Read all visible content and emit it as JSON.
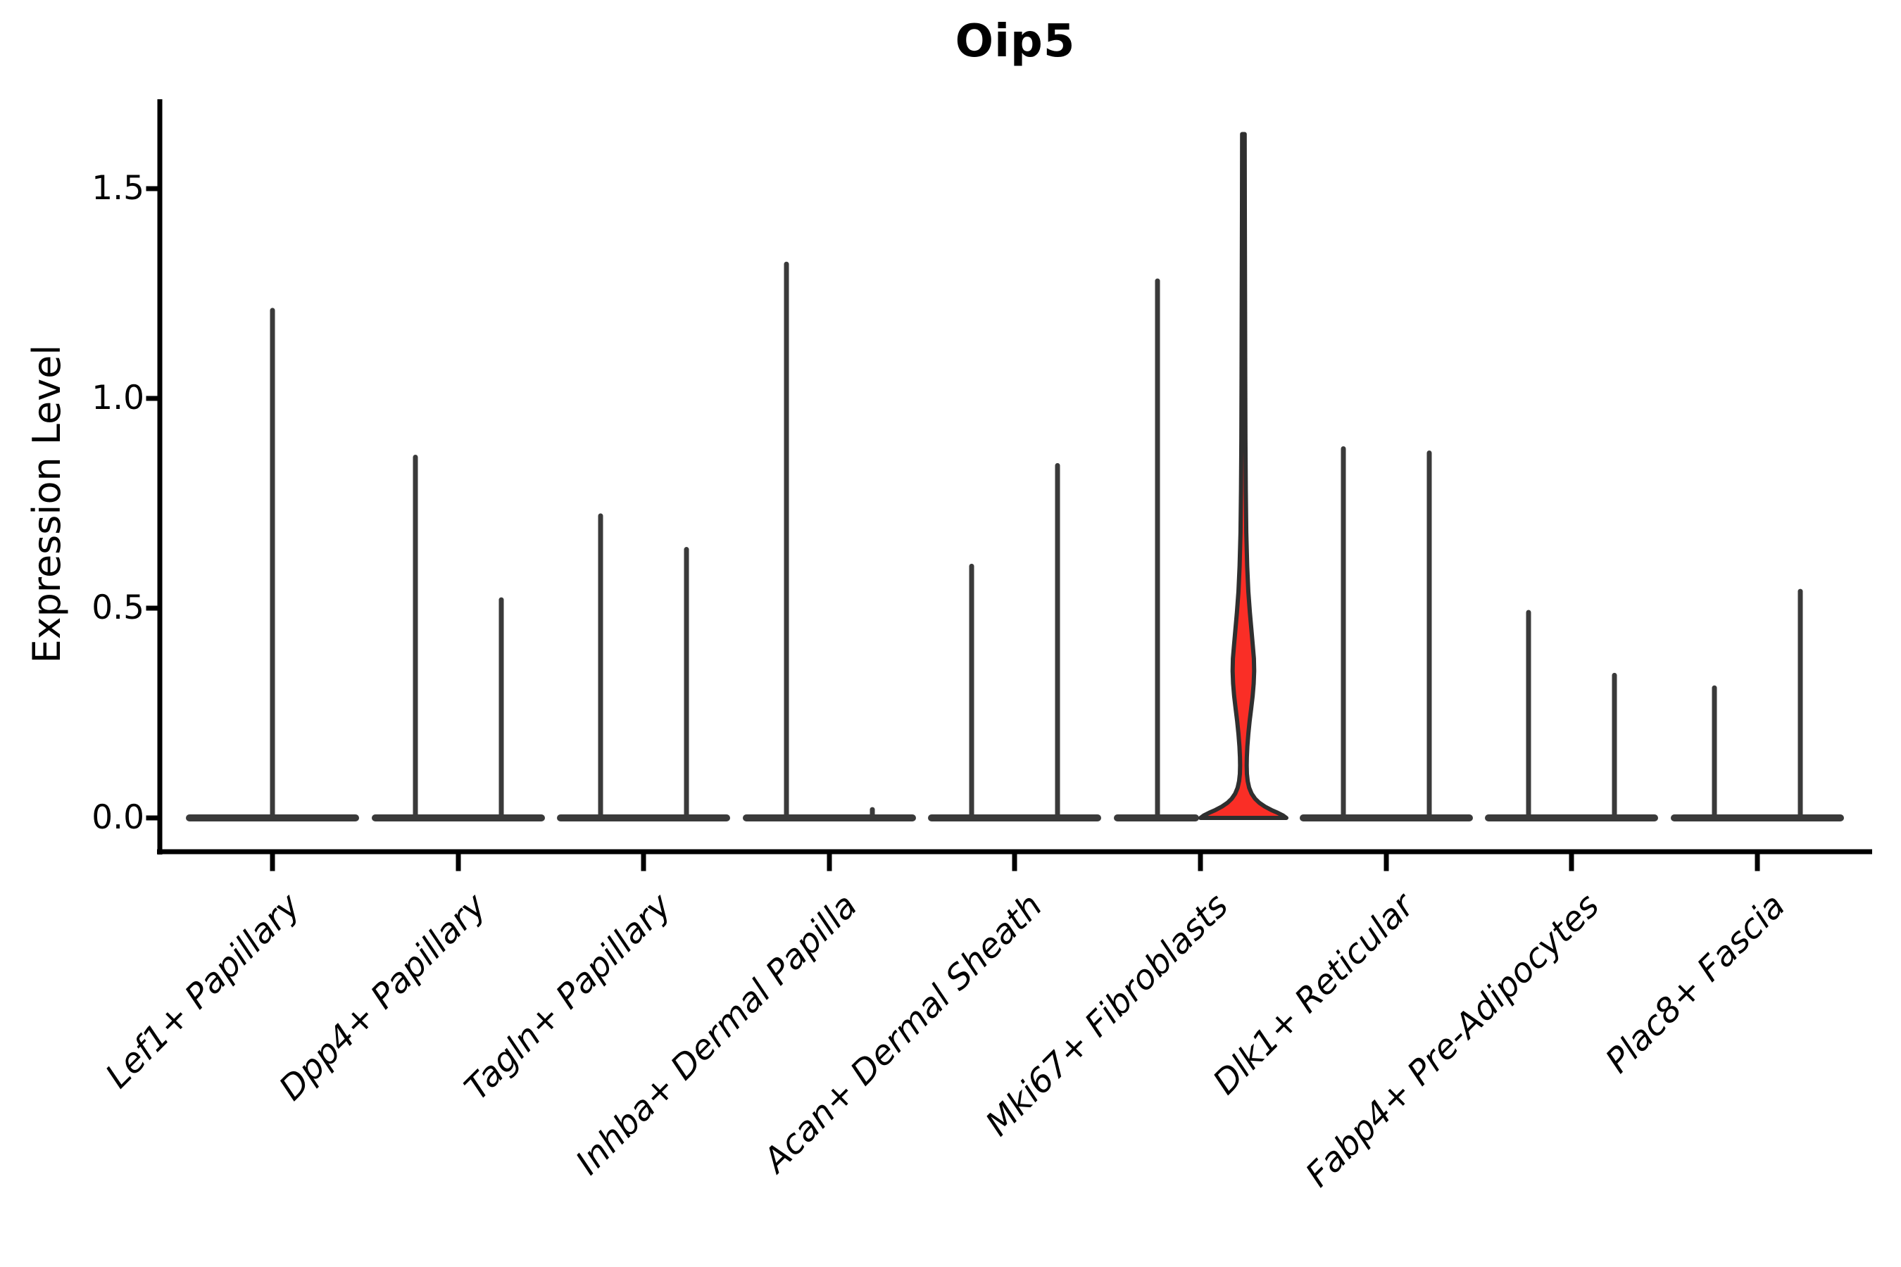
{
  "title": "Oip5",
  "y_axis": {
    "label": "Expression Level",
    "ticks": [
      "0.0",
      "0.5",
      "1.0",
      "1.5"
    ]
  },
  "chart_data": {
    "type": "violin",
    "title": "Oip5",
    "xlabel": "",
    "ylabel": "Expression Level",
    "ylim": [
      0,
      1.7
    ],
    "y_tick_values": [
      0.0,
      0.5,
      1.0,
      1.5
    ],
    "grid": false,
    "legend": false,
    "categories": [
      "Lef1+ Papillary",
      "Dpp4+ Papillary",
      "Tagln+ Papillary",
      "Inhba+ Dermal Papilla",
      "Acan+ Dermal Sheath",
      "Mki67+ Fibroblasts",
      "Dlk1+ Reticular",
      "Fabp4+ Pre-Adipocytes",
      "Plac8+ Fascia"
    ],
    "description": "Violin plot of Oip5 expression per fibroblast cluster; most cells are zero so violins collapse to a flat base with a thin spike to the max value. The Mki67+ Fibroblasts right-hand violin is highlighted red with a visible density bulge.",
    "violins": [
      {
        "category": "Lef1+ Papillary",
        "slot": 0,
        "offset": "center",
        "max": 1.21
      },
      {
        "category": "Dpp4+ Papillary",
        "slot": 1,
        "offset": "left",
        "max": 0.86
      },
      {
        "category": "Dpp4+ Papillary",
        "slot": 1,
        "offset": "right",
        "max": 0.52
      },
      {
        "category": "Tagln+ Papillary",
        "slot": 2,
        "offset": "left",
        "max": 0.72
      },
      {
        "category": "Tagln+ Papillary",
        "slot": 2,
        "offset": "right",
        "max": 0.64
      },
      {
        "category": "Inhba+ Dermal Papilla",
        "slot": 3,
        "offset": "left",
        "max": 1.32
      },
      {
        "category": "Inhba+ Dermal Papilla",
        "slot": 3,
        "offset": "right",
        "max": 0.02
      },
      {
        "category": "Acan+ Dermal Sheath",
        "slot": 4,
        "offset": "left",
        "max": 0.6
      },
      {
        "category": "Acan+ Dermal Sheath",
        "slot": 4,
        "offset": "right",
        "max": 0.84
      },
      {
        "category": "Mki67+ Fibroblasts",
        "slot": 5,
        "offset": "left",
        "max": 1.28
      },
      {
        "category": "Mki67+ Fibroblasts",
        "slot": 5,
        "offset": "right",
        "max": 1.63,
        "highlight": true
      },
      {
        "category": "Dlk1+ Reticular",
        "slot": 6,
        "offset": "left",
        "max": 0.88
      },
      {
        "category": "Dlk1+ Reticular",
        "slot": 6,
        "offset": "right",
        "max": 0.87
      },
      {
        "category": "Fabp4+ Pre-Adipocytes",
        "slot": 7,
        "offset": "left",
        "max": 0.49
      },
      {
        "category": "Fabp4+ Pre-Adipocytes",
        "slot": 7,
        "offset": "right",
        "max": 0.34
      },
      {
        "category": "Plac8+ Fascia",
        "slot": 8,
        "offset": "left",
        "max": 0.31
      },
      {
        "category": "Plac8+ Fascia",
        "slot": 8,
        "offset": "right",
        "max": 0.54
      }
    ],
    "highlight_violin_profile": [
      [
        1.63,
        0.03
      ],
      [
        1.45,
        0.033
      ],
      [
        1.25,
        0.037
      ],
      [
        1.05,
        0.042
      ],
      [
        0.9,
        0.048
      ],
      [
        0.78,
        0.056
      ],
      [
        0.68,
        0.068
      ],
      [
        0.6,
        0.088
      ],
      [
        0.54,
        0.115
      ],
      [
        0.49,
        0.15
      ],
      [
        0.45,
        0.185
      ],
      [
        0.41,
        0.22
      ],
      [
        0.38,
        0.245
      ],
      [
        0.35,
        0.25
      ],
      [
        0.32,
        0.24
      ],
      [
        0.29,
        0.215
      ],
      [
        0.26,
        0.18
      ],
      [
        0.23,
        0.145
      ],
      [
        0.2,
        0.115
      ],
      [
        0.17,
        0.092
      ],
      [
        0.145,
        0.08
      ],
      [
        0.125,
        0.077
      ],
      [
        0.105,
        0.082
      ],
      [
        0.088,
        0.1
      ],
      [
        0.072,
        0.135
      ],
      [
        0.058,
        0.19
      ],
      [
        0.046,
        0.27
      ],
      [
        0.036,
        0.37
      ],
      [
        0.027,
        0.5
      ],
      [
        0.019,
        0.65
      ],
      [
        0.012,
        0.8
      ],
      [
        0.006,
        0.92
      ],
      [
        0.0,
        1.0
      ]
    ],
    "colors": {
      "spike": "#3a3a3a",
      "base_bar": "#3a3a3a",
      "highlight_fill": "#fa2e26",
      "highlight_outline": "#2f2f2f",
      "axis": "#000000"
    }
  }
}
